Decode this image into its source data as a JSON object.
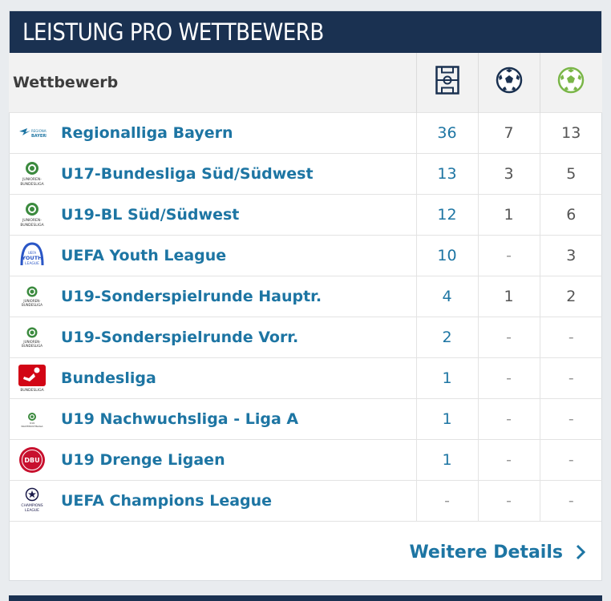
{
  "header": {
    "title": "LEISTUNG PRO WETTBEWERB"
  },
  "table": {
    "col_header": "Wettbewerb",
    "icons": [
      "pitch-icon",
      "football-icon",
      "goal-football-icon"
    ],
    "rows": [
      {
        "logo": "regionalliga-bayern-logo",
        "name": "Regionalliga Bayern",
        "apps": "36",
        "goals": "7",
        "assists": "13"
      },
      {
        "logo": "junioren-bundesliga-logo",
        "name": "U17-Bundesliga Süd/Südwest",
        "apps": "13",
        "goals": "3",
        "assists": "5"
      },
      {
        "logo": "junioren-bundesliga-logo",
        "name": "U19-BL Süd/Südwest",
        "apps": "12",
        "goals": "1",
        "assists": "6"
      },
      {
        "logo": "uefa-youth-league-logo",
        "name": "UEFA Youth League",
        "apps": "10",
        "goals": "-",
        "assists": "3"
      },
      {
        "logo": "junioren-bundesliga-logo",
        "name": "U19-Sonderspielrunde Hauptr.",
        "apps": "4",
        "goals": "1",
        "assists": "2"
      },
      {
        "logo": "junioren-bundesliga-logo",
        "name": "U19-Sonderspielrunde Vorr.",
        "apps": "2",
        "goals": "-",
        "assists": "-"
      },
      {
        "logo": "bundesliga-logo",
        "name": "Bundesliga",
        "apps": "1",
        "goals": "-",
        "assists": "-"
      },
      {
        "logo": "dfb-nachwuchsliga-logo",
        "name": "U19 Nachwuchsliga - Liga A",
        "apps": "1",
        "goals": "-",
        "assists": "-"
      },
      {
        "logo": "dbu-logo",
        "name": "U19 Drenge Ligaen",
        "apps": "1",
        "goals": "-",
        "assists": "-"
      },
      {
        "logo": "uefa-champions-league-logo",
        "name": "UEFA Champions League",
        "apps": "-",
        "goals": "-",
        "assists": "-"
      }
    ]
  },
  "footer": {
    "more_label": "Weitere Details"
  },
  "logo_text": {
    "regionalliga": "REGIONALLIGA BAYERN",
    "junioren": "JUNIOREN-BUNDESLIGA",
    "uefa_youth": "UEFA YOUTH LEAGUE",
    "bundesliga": "BUNDESLIGA",
    "dbu": "DBU",
    "ucl": "CHAMPIONS LEAGUE"
  },
  "colors": {
    "header_bg": "#1a3151",
    "link": "#1d75a3",
    "assist_icon": "#7ab648"
  }
}
